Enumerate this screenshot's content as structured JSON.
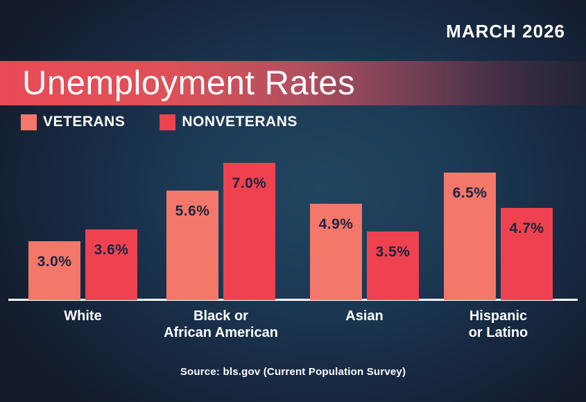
{
  "header": {
    "date_label": "MARCH 2026"
  },
  "banner": {
    "title": "Unemployment Rates"
  },
  "legend": [
    {
      "label": "VETERANS",
      "color": "#f4786a"
    },
    {
      "label": "NONVETERANS",
      "color": "#ef4250"
    }
  ],
  "footer": {
    "source": "Source: bls.gov (Current Population Survey)"
  },
  "colors": {
    "background_center": "#1d3e55",
    "background_corner": "#151c2d",
    "banner_left": "#e94a55",
    "banner_right": "#222434",
    "veterans_bar": "#f4786a",
    "nonveterans_bar": "#ef4250",
    "bar_value_text": "#1c2340",
    "axis_line": "#ffffff",
    "text": "#ffffff"
  },
  "chart_data": {
    "type": "bar",
    "title": "Unemployment Rates",
    "subtitle": "MARCH 2026",
    "categories": [
      "White",
      "Black or\nAfrican American",
      "Asian",
      "Hispanic\nor Latino"
    ],
    "series": [
      {
        "name": "VETERANS",
        "color": "#f4786a",
        "values": [
          3.0,
          5.6,
          4.9,
          6.5
        ]
      },
      {
        "name": "NONVETERANS",
        "color": "#ef4250",
        "values": [
          3.6,
          7.0,
          3.5,
          4.7
        ]
      }
    ],
    "value_suffix": "%",
    "xlabel": "",
    "ylabel": "",
    "ylim": [
      0,
      7.5
    ],
    "grid": false,
    "legend_position": "top-left",
    "bar_labels_inside": true,
    "bar_label_color": "#1c2340",
    "source_note": "Source: bls.gov (Current Population Survey)"
  }
}
